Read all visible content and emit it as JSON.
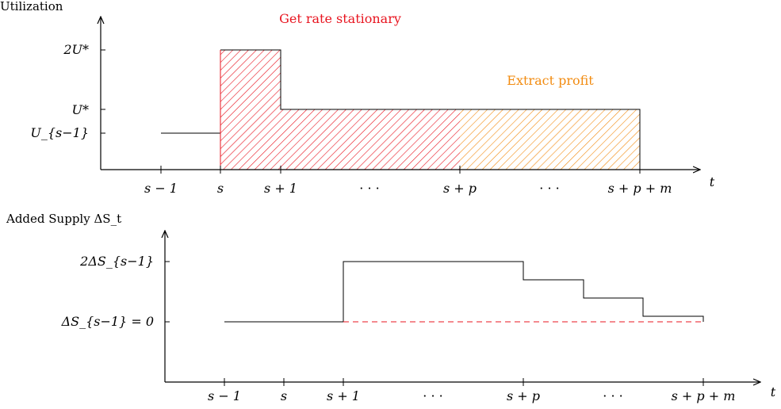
{
  "top": {
    "y_axis_label": "Utilization",
    "x_axis_label": "t",
    "y_ticks": [
      "2U*",
      "U*",
      "U_{s−1}"
    ],
    "x_ticks": [
      "s − 1",
      "s",
      "s + 1",
      "· · ·",
      "s + p",
      "· · ·",
      "s + p + m"
    ],
    "region_red_label": "Get rate stationary",
    "region_orange_label": "Extract profit",
    "colors": {
      "red": "#e8141f",
      "orange": "#f28c12"
    }
  },
  "bottom": {
    "y_axis_label": "Added Supply ΔS_t",
    "x_axis_label": "t",
    "y_ticks": [
      "2ΔS_{s−1}",
      "ΔS_{s−1} = 0"
    ],
    "x_ticks": [
      "s − 1",
      "s",
      "s + 1",
      "· · ·",
      "s + p",
      "· · ·",
      "s + p + m"
    ],
    "colors": {
      "dashed": "#e8141f"
    }
  }
}
